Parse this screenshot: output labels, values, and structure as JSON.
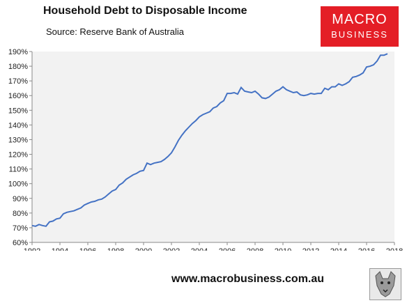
{
  "title": "Household Debt to Disposable Income",
  "source": "Source: Reserve Bank of Australia",
  "logo": {
    "line1": "MACRO",
    "line2": "BUSINESS"
  },
  "footer": {
    "url": "www.macrobusiness.com.au"
  },
  "colors": {
    "line": "#4472c4",
    "plot_bg": "#f2f2f2",
    "logo_bg": "#e41e26"
  },
  "chart_data": {
    "type": "line",
    "title": "Household Debt to Disposable Income",
    "xlabel": "",
    "ylabel": "",
    "xlim": [
      1992,
      2018
    ],
    "ylim": [
      60,
      190
    ],
    "y_ticks": [
      60,
      70,
      80,
      90,
      100,
      110,
      120,
      130,
      140,
      150,
      160,
      170,
      180,
      190
    ],
    "x_ticks": [
      1992,
      1994,
      1996,
      1998,
      2000,
      2002,
      2004,
      2006,
      2008,
      2010,
      2012,
      2014,
      2016,
      2018
    ],
    "y_tick_format": "percent",
    "grid": false,
    "legend": "none",
    "series": [
      {
        "values": [
          [
            1992.0,
            71.5
          ],
          [
            1992.25,
            71.0
          ],
          [
            1992.5,
            72.2
          ],
          [
            1992.75,
            71.5
          ],
          [
            1993.0,
            71.0
          ],
          [
            1993.25,
            74.0
          ],
          [
            1993.5,
            74.5
          ],
          [
            1993.75,
            76.0
          ],
          [
            1994.0,
            76.5
          ],
          [
            1994.25,
            79.5
          ],
          [
            1994.5,
            80.5
          ],
          [
            1994.75,
            81.0
          ],
          [
            1995.0,
            81.5
          ],
          [
            1995.25,
            82.5
          ],
          [
            1995.5,
            83.5
          ],
          [
            1995.75,
            85.5
          ],
          [
            1996.0,
            86.5
          ],
          [
            1996.25,
            87.5
          ],
          [
            1996.5,
            88.0
          ],
          [
            1996.75,
            89.0
          ],
          [
            1997.0,
            89.5
          ],
          [
            1997.25,
            91.0
          ],
          [
            1997.5,
            93.0
          ],
          [
            1997.75,
            95.0
          ],
          [
            1998.0,
            96.0
          ],
          [
            1998.25,
            99.0
          ],
          [
            1998.5,
            100.5
          ],
          [
            1998.75,
            103.0
          ],
          [
            1999.0,
            104.5
          ],
          [
            1999.25,
            106.0
          ],
          [
            1999.5,
            107.0
          ],
          [
            1999.75,
            108.5
          ],
          [
            2000.0,
            109.0
          ],
          [
            2000.25,
            114.0
          ],
          [
            2000.5,
            113.0
          ],
          [
            2000.75,
            114.0
          ],
          [
            2001.0,
            114.5
          ],
          [
            2001.25,
            115.0
          ],
          [
            2001.5,
            116.5
          ],
          [
            2001.75,
            118.5
          ],
          [
            2002.0,
            121.0
          ],
          [
            2002.25,
            125.0
          ],
          [
            2002.5,
            129.5
          ],
          [
            2002.75,
            133.0
          ],
          [
            2003.0,
            136.0
          ],
          [
            2003.25,
            138.5
          ],
          [
            2003.5,
            141.0
          ],
          [
            2003.75,
            143.0
          ],
          [
            2004.0,
            145.5
          ],
          [
            2004.25,
            147.0
          ],
          [
            2004.5,
            148.0
          ],
          [
            2004.75,
            149.0
          ],
          [
            2005.0,
            151.5
          ],
          [
            2005.25,
            152.5
          ],
          [
            2005.5,
            155.0
          ],
          [
            2005.75,
            156.5
          ],
          [
            2006.0,
            161.5
          ],
          [
            2006.25,
            161.5
          ],
          [
            2006.5,
            162.0
          ],
          [
            2006.75,
            161.0
          ],
          [
            2007.0,
            165.5
          ],
          [
            2007.25,
            163.0
          ],
          [
            2007.5,
            162.5
          ],
          [
            2007.75,
            162.0
          ],
          [
            2008.0,
            163.0
          ],
          [
            2008.25,
            161.0
          ],
          [
            2008.5,
            158.5
          ],
          [
            2008.75,
            158.0
          ],
          [
            2009.0,
            159.0
          ],
          [
            2009.25,
            161.0
          ],
          [
            2009.5,
            163.0
          ],
          [
            2009.75,
            164.0
          ],
          [
            2010.0,
            166.0
          ],
          [
            2010.25,
            164.0
          ],
          [
            2010.5,
            163.0
          ],
          [
            2010.75,
            162.0
          ],
          [
            2011.0,
            162.5
          ],
          [
            2011.25,
            160.5
          ],
          [
            2011.5,
            160.0
          ],
          [
            2011.75,
            160.5
          ],
          [
            2012.0,
            161.5
          ],
          [
            2012.25,
            161.0
          ],
          [
            2012.5,
            161.5
          ],
          [
            2012.75,
            161.5
          ],
          [
            2013.0,
            165.0
          ],
          [
            2013.25,
            164.0
          ],
          [
            2013.5,
            166.0
          ],
          [
            2013.75,
            166.0
          ],
          [
            2014.0,
            168.0
          ],
          [
            2014.25,
            167.0
          ],
          [
            2014.5,
            168.0
          ],
          [
            2014.75,
            169.5
          ],
          [
            2015.0,
            172.5
          ],
          [
            2015.25,
            173.0
          ],
          [
            2015.5,
            174.0
          ],
          [
            2015.75,
            175.5
          ],
          [
            2016.0,
            179.5
          ],
          [
            2016.25,
            180.0
          ],
          [
            2016.5,
            181.0
          ],
          [
            2016.75,
            183.5
          ],
          [
            2017.0,
            187.5
          ],
          [
            2017.25,
            187.5
          ],
          [
            2017.5,
            188.5
          ]
        ]
      }
    ]
  }
}
